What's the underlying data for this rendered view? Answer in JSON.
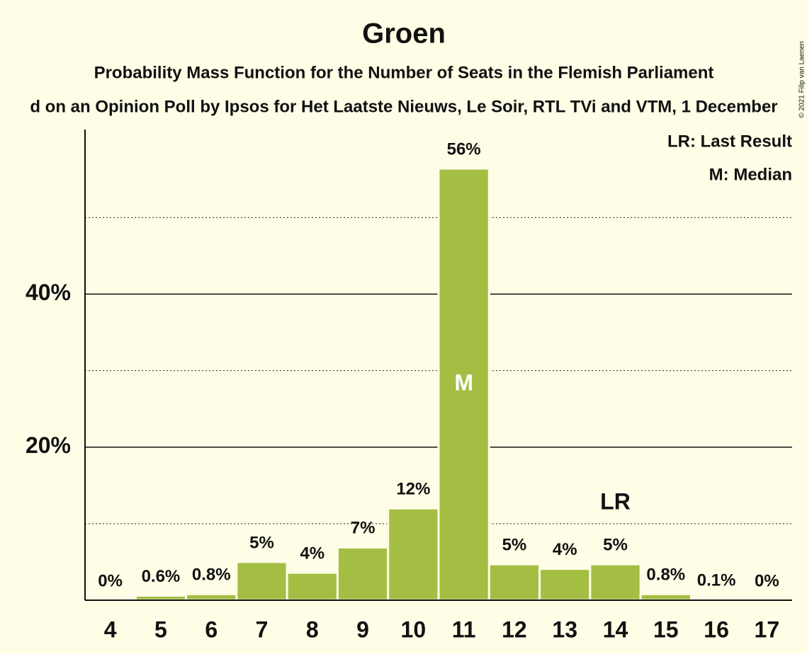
{
  "chart_data": {
    "type": "bar",
    "title": "Groen",
    "subtitle": "Probability Mass Function for the Number of Seats in the Flemish Parliament",
    "source_line": "d on an Opinion Poll by Ipsos for Het Laatste Nieuws, Le Soir, RTL TVi and VTM, 1 December",
    "copyright": "© 2021 Filip van Laenen",
    "categories": [
      4,
      5,
      6,
      7,
      8,
      9,
      10,
      11,
      12,
      13,
      14,
      15,
      16,
      17
    ],
    "values": [
      0,
      0.6,
      0.8,
      5,
      3.6,
      6.9,
      12,
      56.4,
      4.7,
      4.1,
      4.7,
      0.8,
      0.1,
      0
    ],
    "value_labels": [
      "0%",
      "0.6%",
      "0.8%",
      "5%",
      "4%",
      "7%",
      "12%",
      "56%",
      "5%",
      "4%",
      "5%",
      "0.8%",
      "0.1%",
      "0%"
    ],
    "color": "#a3be43",
    "ylim": [
      0,
      61.5
    ],
    "yticks": [
      {
        "value": 20,
        "label": "20%"
      },
      {
        "value": 40,
        "label": "40%"
      }
    ],
    "minor_yticks": [
      10,
      30,
      50
    ],
    "grid": true,
    "median": 11,
    "median_label": "M",
    "last_result": 14,
    "last_result_label": "LR",
    "legend": [
      "LR: Last Result",
      "M: Median"
    ],
    "legend_position": "upper right"
  }
}
